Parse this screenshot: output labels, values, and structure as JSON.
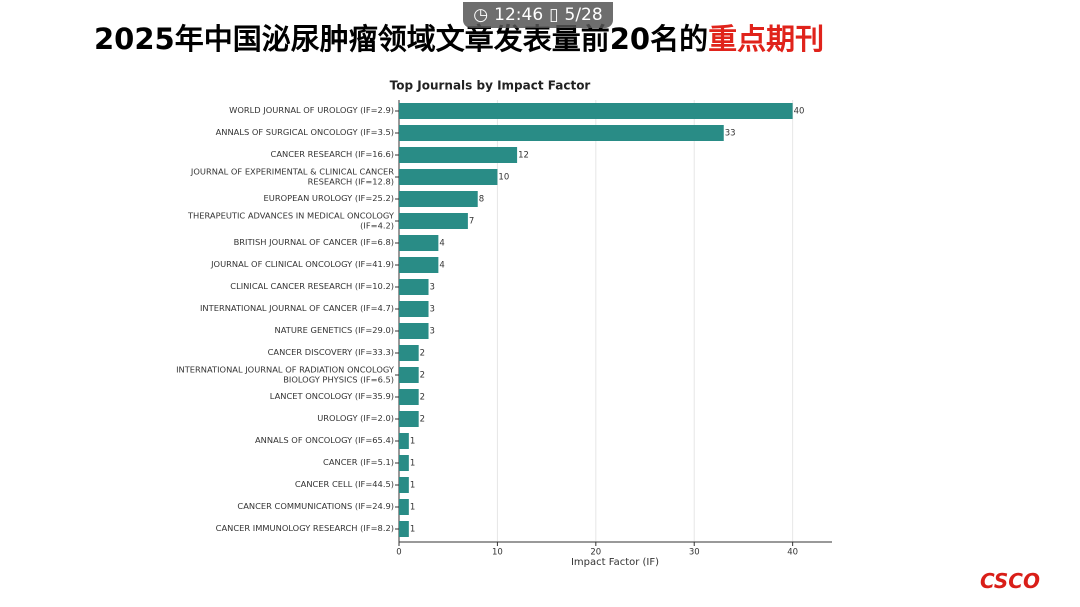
{
  "status_bar": {
    "time": "12:46",
    "page": "5/28"
  },
  "slide_title": {
    "main": "2025年中国泌尿肿瘤领域文章发表量前20名的",
    "highlight": "重点期刊"
  },
  "logo": "CSCO",
  "chart_data": {
    "type": "hbar",
    "title": "Top Journals by Impact Factor",
    "x_label": "Impact Factor (IF)",
    "categories": [
      "WORLD JOURNAL OF UROLOGY (IF=2.9)",
      "ANNALS OF SURGICAL ONCOLOGY (IF=3.5)",
      "CANCER RESEARCH (IF=16.6)",
      "JOURNAL OF EXPERIMENTAL & CLINICAL CANCER RESEARCH (IF=12.8)",
      "EUROPEAN UROLOGY (IF=25.2)",
      "THERAPEUTIC ADVANCES IN MEDICAL ONCOLOGY (IF=4.2)",
      "BRITISH JOURNAL OF CANCER (IF=6.8)",
      "JOURNAL OF CLINICAL ONCOLOGY (IF=41.9)",
      "CLINICAL CANCER RESEARCH (IF=10.2)",
      "INTERNATIONAL JOURNAL OF CANCER (IF=4.7)",
      "NATURE GENETICS (IF=29.0)",
      "CANCER DISCOVERY (IF=33.3)",
      "INTERNATIONAL JOURNAL OF RADIATION ONCOLOGY BIOLOGY PHYSICS (IF=6.5)",
      "LANCET ONCOLOGY (IF=35.9)",
      "UROLOGY (IF=2.0)",
      "ANNALS OF ONCOLOGY (IF=65.4)",
      "CANCER (IF=5.1)",
      "CANCER CELL (IF=44.5)",
      "CANCER COMMUNICATIONS (IF=24.9)",
      "CANCER IMMUNOLOGY RESEARCH (IF=8.2)"
    ],
    "values": [
      40,
      33,
      12,
      10,
      8,
      7,
      4,
      4,
      3,
      3,
      3,
      2,
      2,
      2,
      2,
      1,
      1,
      1,
      1,
      1
    ],
    "color": "#298c86",
    "xlim": [
      0,
      44
    ],
    "xticks": [
      0,
      10,
      20,
      30,
      40
    ],
    "grid": true
  }
}
